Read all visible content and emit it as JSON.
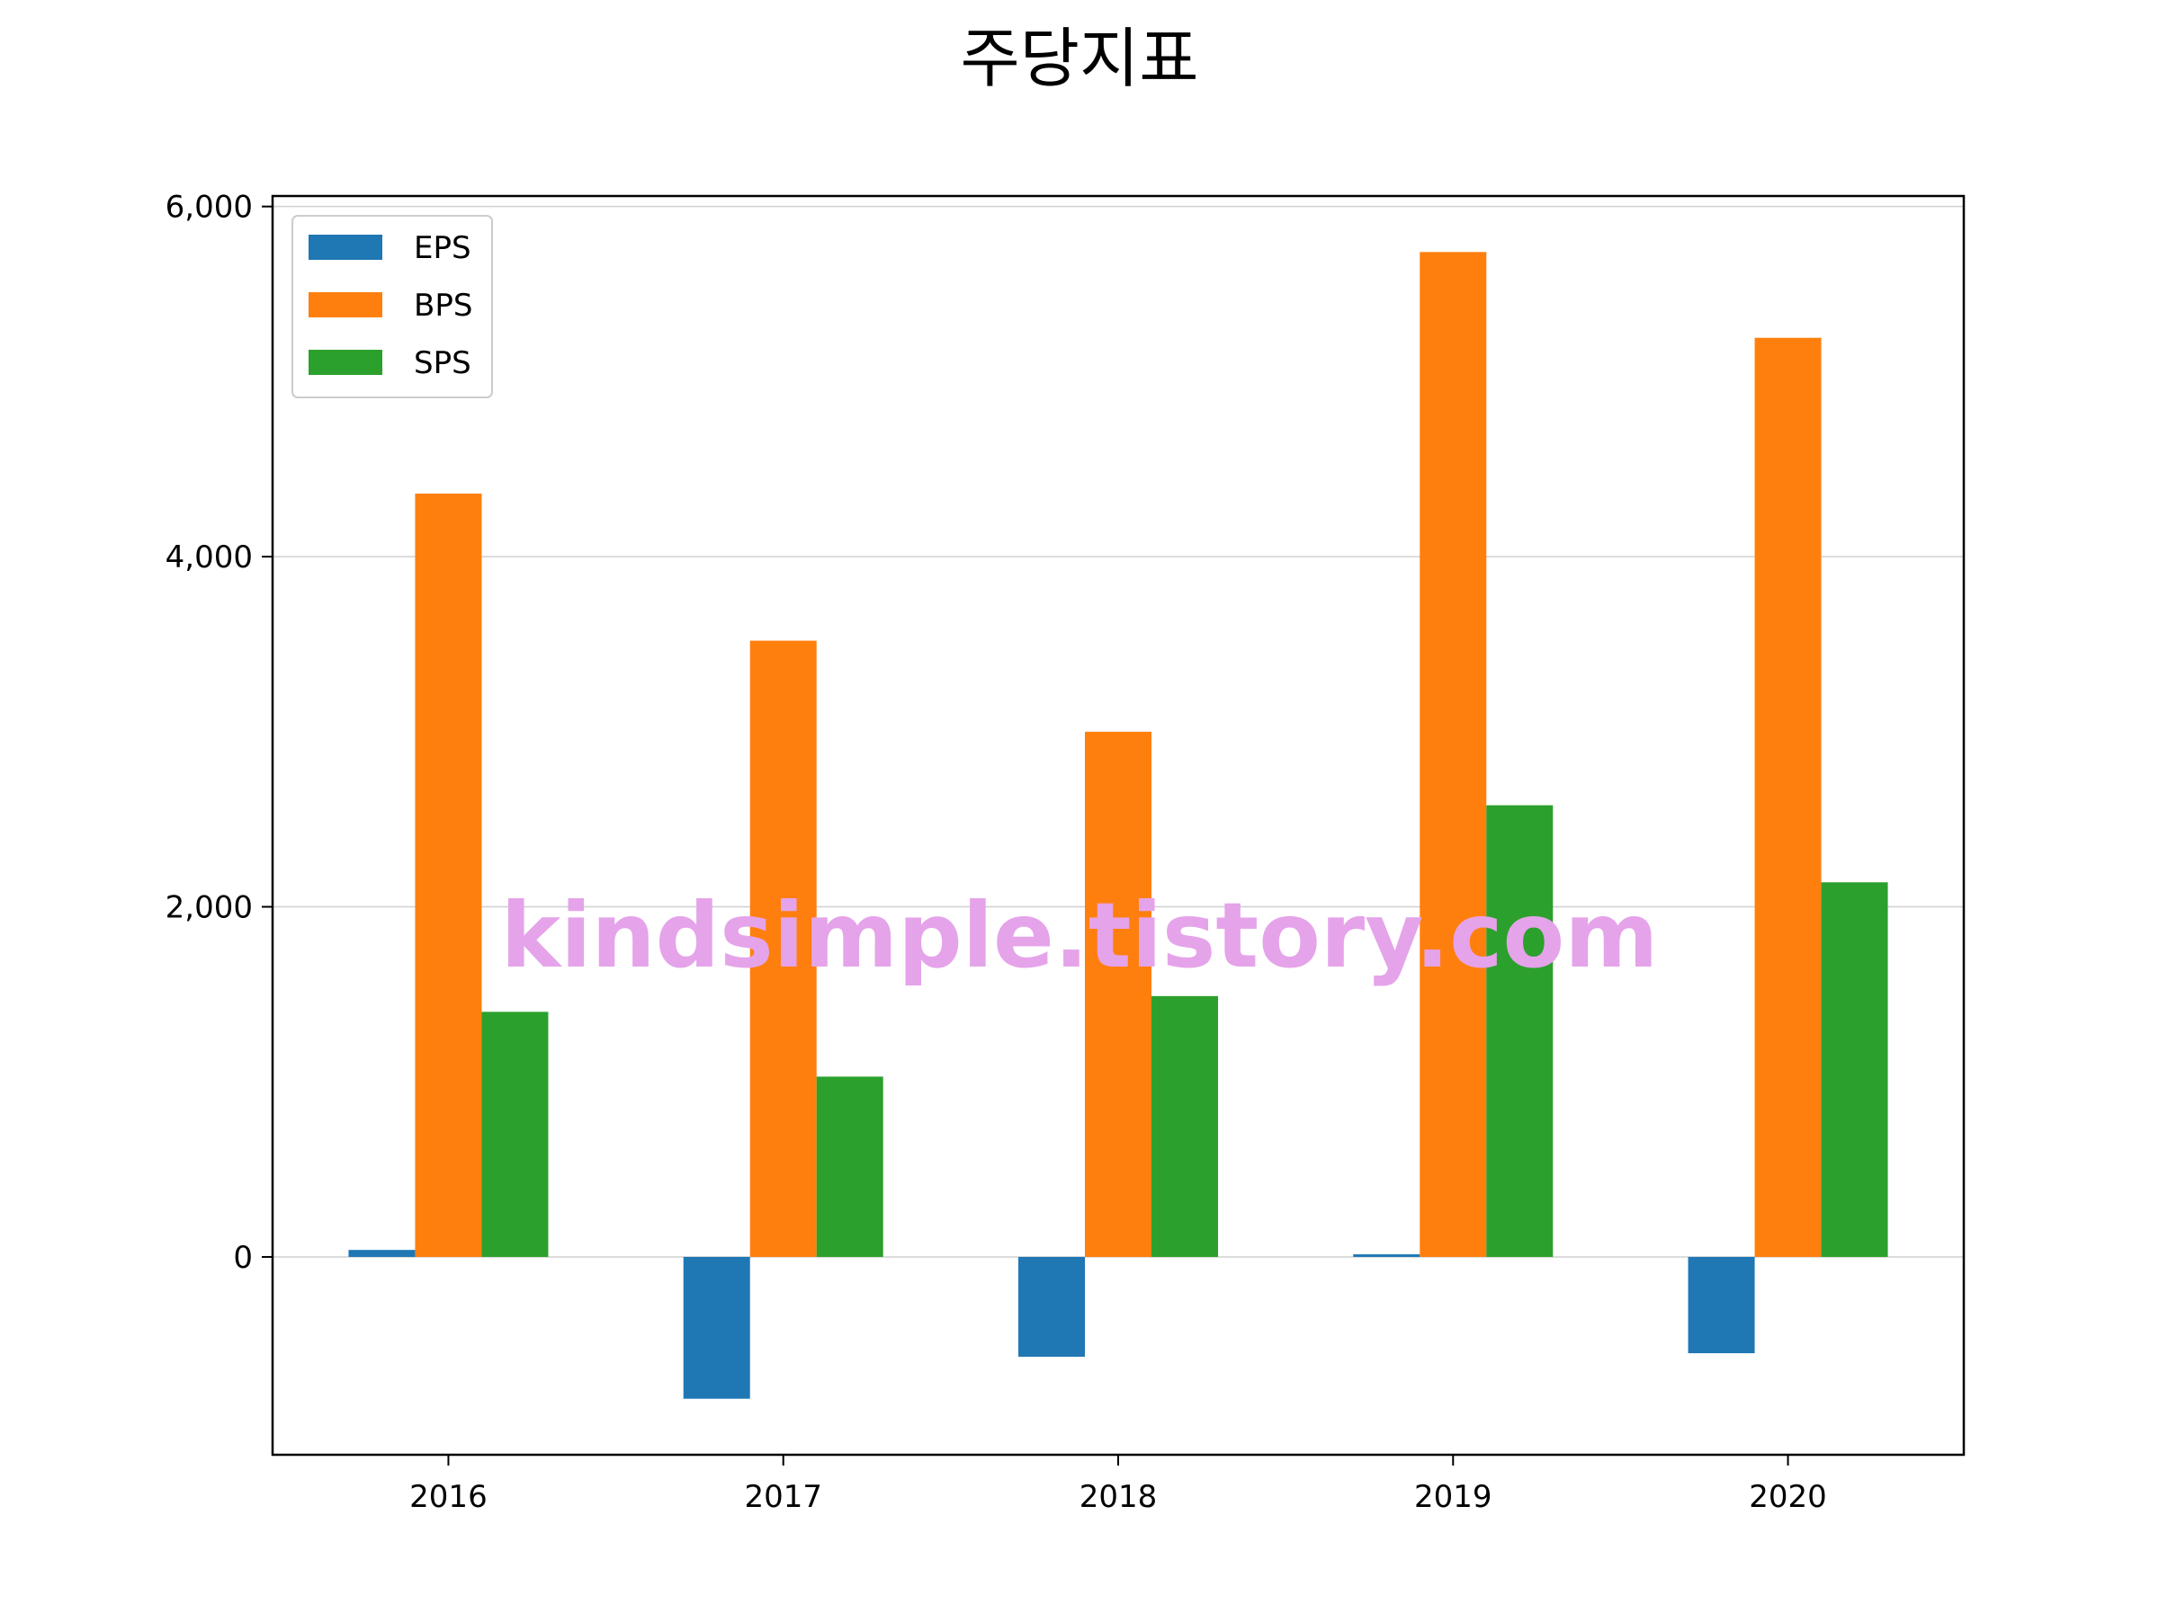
{
  "chart_data": {
    "type": "bar",
    "title": "주당지표",
    "xlabel": "",
    "ylabel": "",
    "categories": [
      "2016",
      "2017",
      "2018",
      "2019",
      "2020"
    ],
    "series": [
      {
        "name": "EPS",
        "color": "#1f77b4",
        "values": [
          40,
          -810,
          -570,
          15,
          -550
        ]
      },
      {
        "name": "BPS",
        "color": "#ff7f0e",
        "values": [
          4360,
          3520,
          3000,
          5740,
          5250
        ]
      },
      {
        "name": "SPS",
        "color": "#2ca02c",
        "values": [
          1400,
          1030,
          1490,
          2580,
          2140
        ]
      }
    ],
    "ylim": [
      -1130,
      6060
    ],
    "yticks": [
      0,
      2000,
      4000,
      6000
    ],
    "ytick_labels": [
      "0",
      "2,000",
      "4,000",
      "6,000"
    ],
    "grid": "y-axis horizontal lines",
    "legend_position": "top-left",
    "watermark": "kindsimple.tistory.com",
    "watermark_color": "#e5a3ea"
  }
}
